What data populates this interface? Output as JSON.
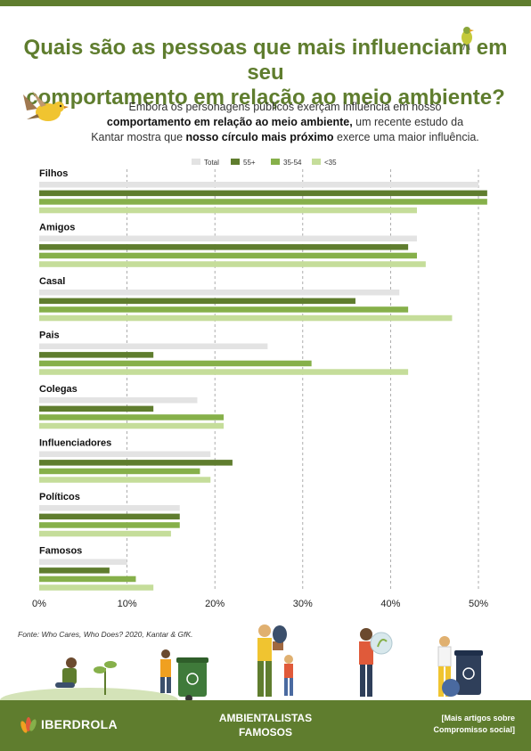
{
  "header": {
    "title_line1": "Quais são as pessoas que mais influenciam em seu",
    "title_line2": "comportamento em relação ao meio ambiente?"
  },
  "intro": {
    "p1": "Embora os personagens públicos exerçam influência em nosso",
    "b1": "comportamento em relação ao meio ambiente,",
    "p2": " um recente estudo da",
    "p3": "Kantar mostra que ",
    "b2": "nosso círculo mais próximo",
    "p4": " exerce uma maior influência."
  },
  "chart_data": {
    "type": "bar",
    "orientation": "horizontal",
    "categories": [
      "Filhos",
      "Amigos",
      "Casal",
      "Pais",
      "Colegas",
      "Influenciadores",
      "Políticos",
      "Famosos"
    ],
    "series": [
      {
        "name": "Total",
        "color": "#e3e3e3",
        "values": [
          50,
          43,
          41,
          26,
          18,
          19.5,
          16,
          10
        ]
      },
      {
        "name": "55+",
        "color": "#5f7d2e",
        "values": [
          51,
          42,
          36,
          13,
          13,
          22,
          16,
          8
        ]
      },
      {
        "name": "35-54",
        "color": "#86b04a",
        "values": [
          51,
          43,
          42,
          31,
          21,
          18.3,
          16,
          11
        ]
      },
      {
        "name": "<35",
        "color": "#c5dd9a",
        "values": [
          43,
          44,
          47,
          42,
          21,
          19.5,
          15,
          13
        ]
      }
    ],
    "xlim": [
      0,
      55
    ],
    "x_ticks": [
      "0%",
      "10%",
      "20%",
      "30%",
      "40%",
      "50%"
    ],
    "x_tick_values": [
      0,
      10,
      20,
      30,
      40,
      50
    ],
    "grid": "dashed-vertical",
    "legend": "top-center"
  },
  "source": "Fonte: Who Cares, Who Does? 2020, Kantar & GfK.",
  "footer": {
    "brand": "IBERDROLA",
    "center_line1": "AMBIENTALISTAS",
    "center_line2": "FAMOSOS",
    "right_line1": "[Mais artigos sobre",
    "right_line2": "Compromisso social]"
  },
  "icons": {
    "birds": "bird-icon",
    "brand": "iberdrola-leaf-logo-icon",
    "scene": "people-gardening-recycling-illustration"
  }
}
